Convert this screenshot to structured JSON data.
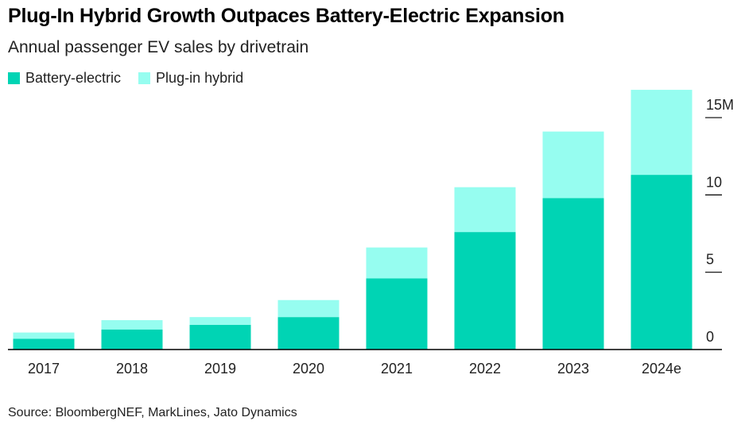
{
  "header": {
    "title": "Plug-In Hybrid Growth Outpaces Battery-Electric Expansion",
    "subtitle": "Annual passenger EV sales by drivetrain"
  },
  "legend": {
    "items": [
      {
        "label": "Battery-electric",
        "color": "#00d4b4"
      },
      {
        "label": "Plug-in hybrid",
        "color": "#96fdf0"
      }
    ]
  },
  "footer": {
    "source": "Source: BloombergNEF, MarkLines, Jato Dynamics"
  },
  "chart_data": {
    "type": "bar",
    "stacked": true,
    "title": "Plug-In Hybrid Growth Outpaces Battery-Electric Expansion",
    "subtitle": "Annual passenger EV sales by drivetrain",
    "categories": [
      "2017",
      "2018",
      "2019",
      "2020",
      "2021",
      "2022",
      "2023",
      "2024e"
    ],
    "series": [
      {
        "name": "Battery-electric",
        "color": "#00d4b4",
        "values": [
          0.7,
          1.3,
          1.6,
          2.1,
          4.6,
          7.6,
          9.8,
          11.3
        ]
      },
      {
        "name": "Plug-in hybrid",
        "color": "#96fdf0",
        "values": [
          0.4,
          0.6,
          0.5,
          1.1,
          2.0,
          2.9,
          4.3,
          5.5
        ]
      }
    ],
    "ylim": [
      0,
      16.7
    ],
    "y_ticks": [
      {
        "value": 0,
        "label": "0"
      },
      {
        "value": 5,
        "label": "5"
      },
      {
        "value": 10,
        "label": "10"
      },
      {
        "value": 15,
        "label": "15M"
      }
    ],
    "y_axis_position": "right",
    "grid": false,
    "legend_position": "top-left"
  }
}
